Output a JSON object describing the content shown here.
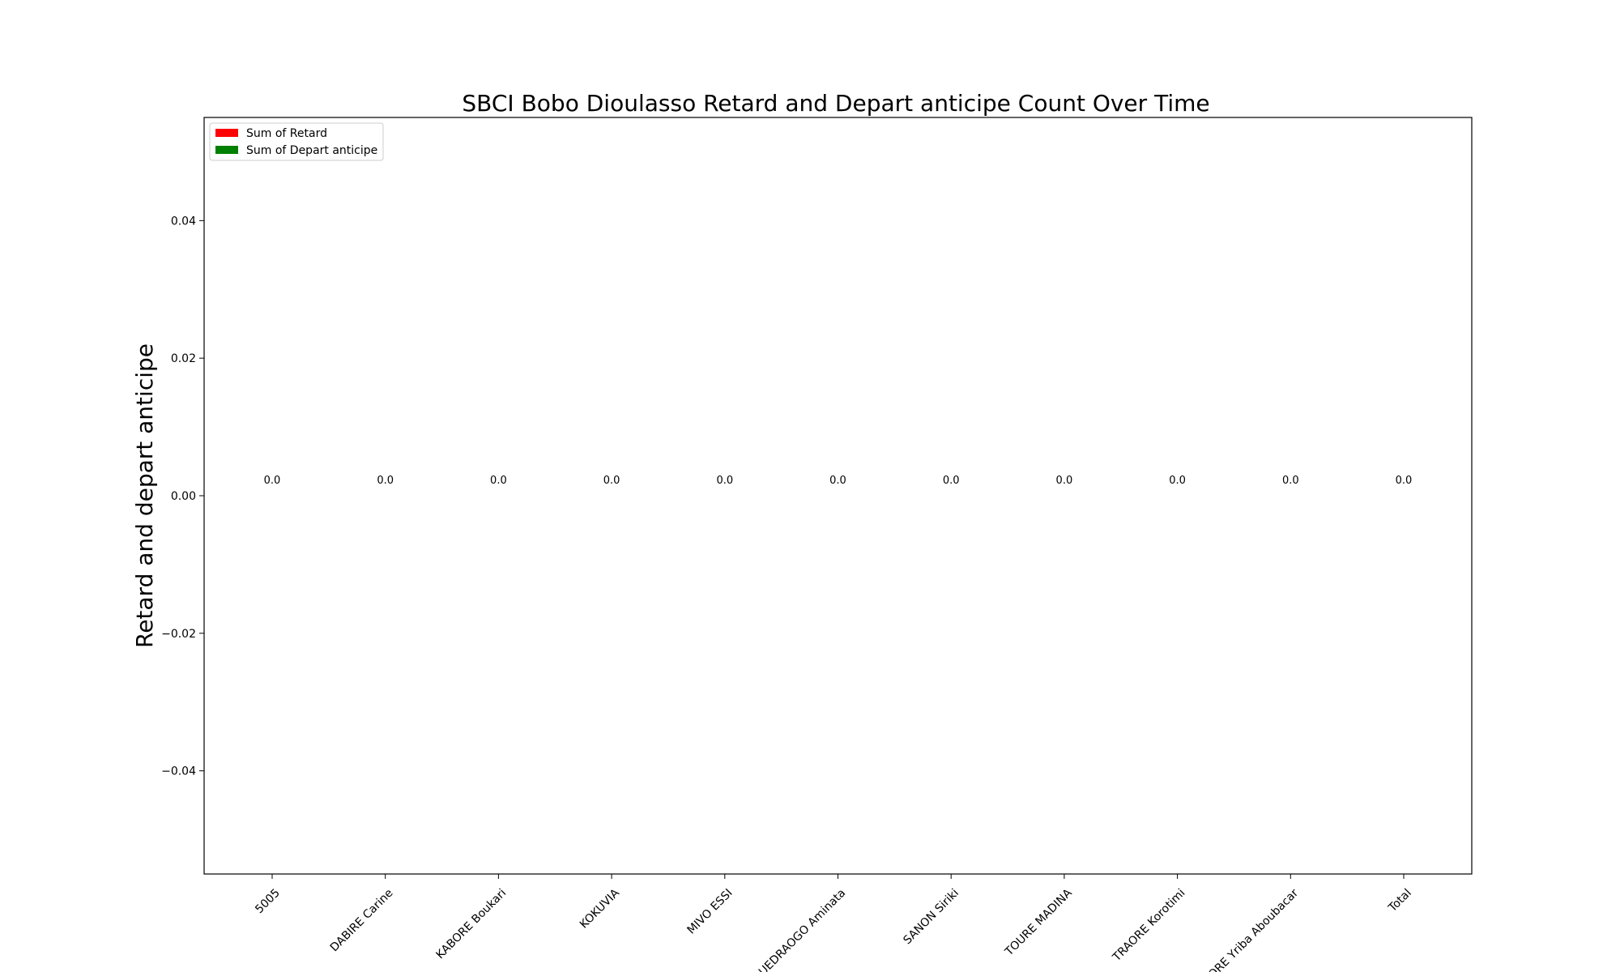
{
  "chart_data": {
    "type": "bar",
    "title": "SBCI Bobo Dioulasso Retard and Depart anticipe Count Over Time",
    "xlabel": "",
    "ylabel": "Retard and depart anticipe",
    "categories": [
      "5005",
      "DABIRE Carine",
      "KABORE Boukari",
      "KOKUVIA",
      "MIVO ESSI",
      "OUEDRAOGO Aminata",
      "SANON Siriki",
      "TOURE MADINA",
      "TRAORE Korotimi",
      "TRAORE Yriba Aboubacar",
      "Total"
    ],
    "series": [
      {
        "name": "Sum of Retard",
        "color": "#ff0000",
        "values": [
          0,
          0,
          0,
          0,
          0,
          0,
          0,
          0,
          0,
          0,
          0
        ]
      },
      {
        "name": "Sum of Depart anticipe",
        "color": "#008000",
        "values": [
          0,
          0,
          0,
          0,
          0,
          0,
          0,
          0,
          0,
          0,
          0
        ]
      }
    ],
    "bar_labels": [
      "0.0",
      "0.0",
      "0.0",
      "0.0",
      "0.0",
      "0.0",
      "0.0",
      "0.0",
      "0.0",
      "0.0",
      "0.0"
    ],
    "ylim": [
      -0.055,
      0.055
    ],
    "yticks": [
      -0.04,
      -0.02,
      0.0,
      0.02,
      0.04
    ],
    "ytick_labels": [
      "−0.04",
      "−0.02",
      "0.00",
      "0.02",
      "0.04"
    ],
    "grid": false,
    "legend_position": "top-left"
  }
}
